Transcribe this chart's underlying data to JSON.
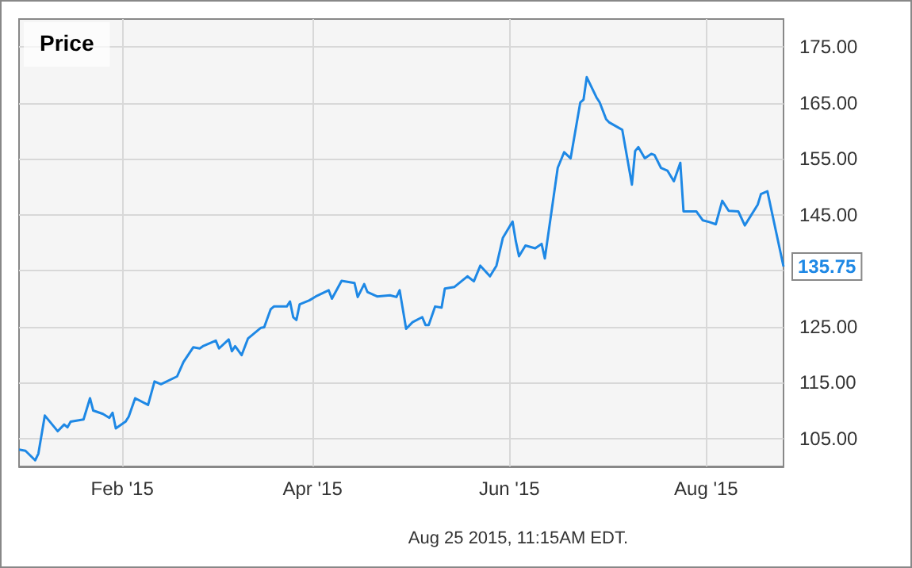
{
  "chart_data": {
    "type": "line",
    "title": "Price",
    "x": [
      "2014-12-31",
      "2015-01-02",
      "2015-01-05",
      "2015-01-06",
      "2015-01-08",
      "2015-01-12",
      "2015-01-14",
      "2015-01-15",
      "2015-01-16",
      "2015-01-20",
      "2015-01-22",
      "2015-01-23",
      "2015-01-26",
      "2015-01-28",
      "2015-01-29",
      "2015-01-30",
      "2015-02-02",
      "2015-02-03",
      "2015-02-05",
      "2015-02-09",
      "2015-02-11",
      "2015-02-13",
      "2015-02-18",
      "2015-02-20",
      "2015-02-23",
      "2015-02-25",
      "2015-02-26",
      "2015-03-02",
      "2015-03-03",
      "2015-03-06",
      "2015-03-07",
      "2015-03-08",
      "2015-03-10",
      "2015-03-12",
      "2015-03-16",
      "2015-03-17",
      "2015-03-19",
      "2015-03-20",
      "2015-03-24",
      "2015-03-25",
      "2015-03-26",
      "2015-03-27",
      "2015-03-28",
      "2015-03-31",
      "2015-04-02",
      "2015-04-06",
      "2015-04-07",
      "2015-04-10",
      "2015-04-14",
      "2015-04-15",
      "2015-04-17",
      "2015-04-18",
      "2015-04-21",
      "2015-04-25",
      "2015-04-27",
      "2015-04-28",
      "2015-04-30",
      "2015-05-02",
      "2015-05-05",
      "2015-05-06",
      "2015-05-07",
      "2015-05-09",
      "2015-05-11",
      "2015-05-12",
      "2015-05-15",
      "2015-05-19",
      "2015-05-21",
      "2015-05-23",
      "2015-05-26",
      "2015-05-28",
      "2015-05-30",
      "2015-06-02",
      "2015-06-03",
      "2015-06-04",
      "2015-06-06",
      "2015-06-09",
      "2015-06-11",
      "2015-06-12",
      "2015-06-16",
      "2015-06-18",
      "2015-06-20",
      "2015-06-23",
      "2015-06-24",
      "2015-06-25",
      "2015-06-28",
      "2015-06-29",
      "2015-07-01",
      "2015-07-02",
      "2015-07-06",
      "2015-07-09",
      "2015-07-10",
      "2015-07-11",
      "2015-07-13",
      "2015-07-15",
      "2015-07-16",
      "2015-07-18",
      "2015-07-20",
      "2015-07-22",
      "2015-07-24",
      "2015-07-25",
      "2015-07-29",
      "2015-07-31",
      "2015-08-02",
      "2015-08-04",
      "2015-08-06",
      "2015-08-08",
      "2015-08-11",
      "2015-08-13",
      "2015-08-17",
      "2015-08-18",
      "2015-08-20",
      "2015-08-25"
    ],
    "series": [
      {
        "color": "#1e88e5",
        "values": [
          103.0,
          102.8,
          101.1,
          102.3,
          109.1,
          106.3,
          107.5,
          107.0,
          108.0,
          108.4,
          112.2,
          110.0,
          109.4,
          108.7,
          109.6,
          106.8,
          108.0,
          108.9,
          112.2,
          111.0,
          115.2,
          114.7,
          116.1,
          118.7,
          121.3,
          121.1,
          121.5,
          122.5,
          121.1,
          122.7,
          120.6,
          121.5,
          119.9,
          122.9,
          124.8,
          124.9,
          128.1,
          128.6,
          128.6,
          129.5,
          126.7,
          126.2,
          129.0,
          129.7,
          130.4,
          131.5,
          130.0,
          133.2,
          132.8,
          130.3,
          132.6,
          131.2,
          130.4,
          130.6,
          130.3,
          131.5,
          124.6,
          125.8,
          126.7,
          125.3,
          125.3,
          128.6,
          128.4,
          131.8,
          132.1,
          134.0,
          133.1,
          135.9,
          134.0,
          135.9,
          140.9,
          143.8,
          140.3,
          137.6,
          139.5,
          139.0,
          139.8,
          137.2,
          153.4,
          156.2,
          155.1,
          165.1,
          165.6,
          169.6,
          166.0,
          165.1,
          162.1,
          161.5,
          160.2,
          150.4,
          156.4,
          157.1,
          155.1,
          155.9,
          155.7,
          153.4,
          152.9,
          151.0,
          154.3,
          145.6,
          145.6,
          144.0,
          143.7,
          143.3,
          147.5,
          145.7,
          145.6,
          143.1,
          146.8,
          148.7,
          149.2,
          135.75
        ],
        "value_labels": [
          null,
          null,
          null,
          null,
          null,
          null,
          null,
          null,
          null,
          null,
          null,
          null,
          null,
          null,
          null,
          null,
          null,
          null,
          null,
          null,
          null,
          null,
          null,
          null,
          null,
          null,
          null,
          null,
          null,
          null,
          null,
          null,
          null,
          null,
          null,
          null,
          null,
          null,
          null,
          null,
          null,
          null,
          null,
          null,
          null,
          null,
          null,
          null,
          null,
          null,
          null,
          null,
          null,
          null,
          null,
          null,
          null,
          null,
          null,
          null,
          null,
          null,
          null,
          null,
          null,
          null,
          null,
          null,
          null,
          null,
          null,
          null,
          null,
          null,
          null,
          null,
          null,
          null,
          null,
          null,
          null,
          null,
          null,
          null,
          null,
          null,
          null,
          null,
          null,
          null,
          null,
          null,
          null,
          null,
          null,
          null,
          null,
          null,
          null,
          null,
          null,
          null,
          null,
          null,
          null,
          null,
          null,
          null,
          null,
          null,
          null,
          "135.75"
        ]
      }
    ],
    "xlim": [
      "2014-12-31",
      "2015-08-25"
    ],
    "xticks": [
      {
        "value": "2015-02-01",
        "label": "Feb '15"
      },
      {
        "value": "2015-04-01",
        "label": "Apr '15"
      },
      {
        "value": "2015-06-01",
        "label": "Jun '15"
      },
      {
        "value": "2015-08-01",
        "label": "Aug '15"
      }
    ],
    "ylim": [
      100,
      180
    ],
    "yticks": [
      {
        "value": 105,
        "label": "105.00"
      },
      {
        "value": 115,
        "label": "115.00"
      },
      {
        "value": 125,
        "label": "125.00"
      },
      {
        "value": 135,
        "label": null
      },
      {
        "value": 145,
        "label": "145.00"
      },
      {
        "value": 155,
        "label": "155.00"
      },
      {
        "value": 165,
        "label": "165.00"
      },
      {
        "value": 175,
        "label": "175.00"
      }
    ],
    "grid": true,
    "annotations": [
      "Aug 25 2015, 11:15AM EDT."
    ]
  }
}
